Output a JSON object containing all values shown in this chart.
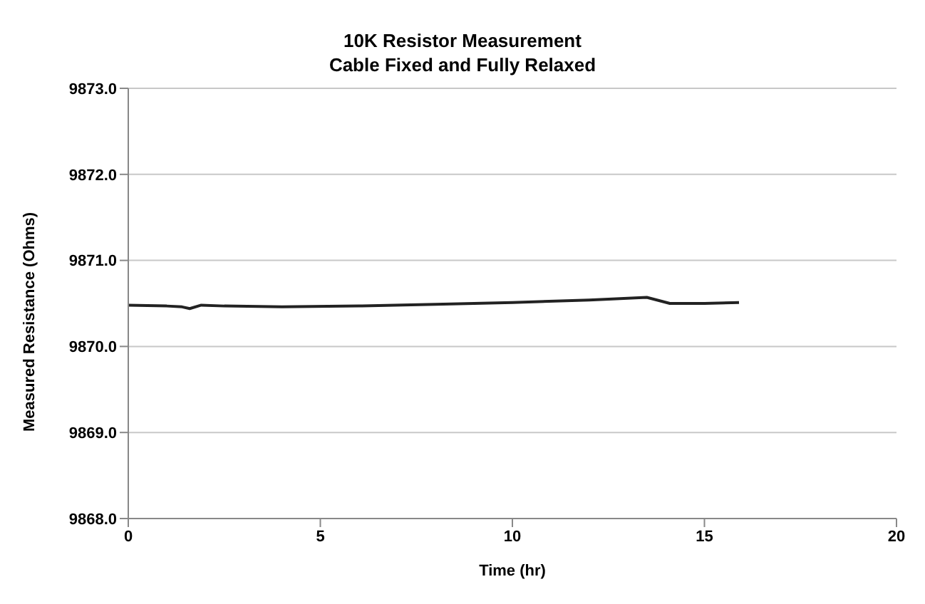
{
  "chart_data": {
    "type": "line",
    "title": "10K Resistor Measurement",
    "subtitle": "Cable Fixed and Fully Relaxed",
    "xlabel": "Time (hr)",
    "ylabel": "Measured Resistance (Ohms)",
    "x": [
      0,
      1,
      1.4,
      1.6,
      1.9,
      2.5,
      4,
      6,
      8,
      10,
      12,
      13.5,
      14.1,
      15,
      15.9
    ],
    "series": [
      {
        "color": "#222222",
        "values": [
          9870.48,
          9870.47,
          9870.46,
          9870.44,
          9870.48,
          9870.47,
          9870.46,
          9870.47,
          9870.49,
          9870.51,
          9870.54,
          9870.57,
          9870.5,
          9870.5,
          9870.51
        ]
      }
    ],
    "xlim": [
      0,
      20
    ],
    "xticks": [
      0,
      5,
      10,
      15,
      20
    ],
    "ylim": [
      9868,
      9873
    ],
    "yticks": [
      {
        "value": 9868,
        "label": "9868.0"
      },
      {
        "value": 9869,
        "label": "9869.0"
      },
      {
        "value": 9870,
        "label": "9870.0"
      },
      {
        "value": 9871,
        "label": "9871.0"
      },
      {
        "value": 9872,
        "label": "9872.0"
      },
      {
        "value": 9873,
        "label": "9873.0"
      }
    ],
    "grid": "y",
    "marker": "none",
    "line_style": "solid",
    "legend": false
  }
}
